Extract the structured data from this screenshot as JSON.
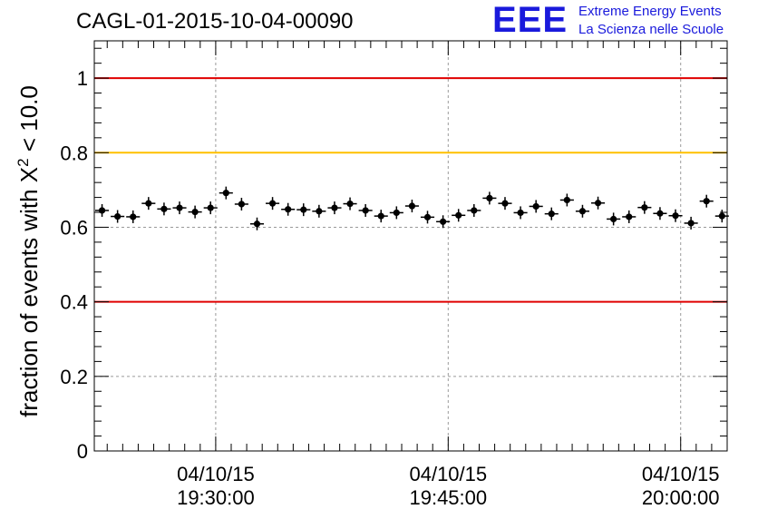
{
  "logo": {
    "mark": "EEE",
    "line1": "Extreme Energy Events",
    "line2": "La Scienza nelle Scuole",
    "color": "#1a1adc"
  },
  "chart_data": {
    "type": "scatter",
    "title": "CAGL-01-2015-10-04-00090",
    "xlabel": "",
    "ylabel_prefix": "fraction of events with ",
    "ylabel_symbol": "X",
    "ylabel_sup": "2",
    "ylabel_suffix": " < 10.0",
    "ylim": [
      0,
      1.1
    ],
    "xlim": [
      "2015-10-04 19:22:10",
      "2015-10-04 20:03:00"
    ],
    "yticks": [
      "0",
      "0.2",
      "0.4",
      "0.6",
      "0.8",
      "1"
    ],
    "yticks_values": [
      0,
      0.2,
      0.4,
      0.6,
      0.8,
      1
    ],
    "xticks": [
      {
        "time": "2015-10-04 19:30:00",
        "line1": "04/10/15",
        "line2": "19:30:00"
      },
      {
        "time": "2015-10-04 19:45:00",
        "line1": "04/10/15",
        "line2": "19:45:00"
      },
      {
        "time": "2015-10-04 20:00:00",
        "line1": "04/10/15",
        "line2": "20:00:00"
      }
    ],
    "grid": true,
    "reference_lines": [
      {
        "y": 1.0,
        "color": "#e00000"
      },
      {
        "y": 0.8,
        "color": "#ffc000"
      },
      {
        "y": 0.4,
        "color": "#e00000"
      }
    ],
    "series": [
      {
        "marker_color": "#000000",
        "x": [
          "19:22:40",
          "19:23:40",
          "19:24:40",
          "19:25:40",
          "19:26:40",
          "19:27:40",
          "19:28:40",
          "19:29:40",
          "19:30:40",
          "19:31:40",
          "19:32:40",
          "19:33:40",
          "19:34:40",
          "19:35:40",
          "19:36:40",
          "19:37:40",
          "19:38:40",
          "19:39:40",
          "19:40:40",
          "19:41:40",
          "19:42:40",
          "19:43:40",
          "19:44:40",
          "19:45:40",
          "19:46:40",
          "19:47:40",
          "19:48:40",
          "19:49:40",
          "19:50:40",
          "19:51:40",
          "19:52:40",
          "19:53:40",
          "19:54:40",
          "19:55:40",
          "19:56:40",
          "19:57:40",
          "19:58:40",
          "19:59:40",
          "20:00:40",
          "20:01:40",
          "20:02:40"
        ],
        "y": [
          0.645,
          0.629,
          0.628,
          0.664,
          0.649,
          0.652,
          0.641,
          0.652,
          0.692,
          0.662,
          0.609,
          0.664,
          0.648,
          0.647,
          0.643,
          0.652,
          0.663,
          0.645,
          0.63,
          0.639,
          0.657,
          0.627,
          0.615,
          0.632,
          0.645,
          0.678,
          0.664,
          0.639,
          0.656,
          0.636,
          0.673,
          0.643,
          0.665,
          0.622,
          0.628,
          0.653,
          0.637,
          0.631,
          0.611,
          0.67,
          0.63
        ]
      }
    ]
  }
}
